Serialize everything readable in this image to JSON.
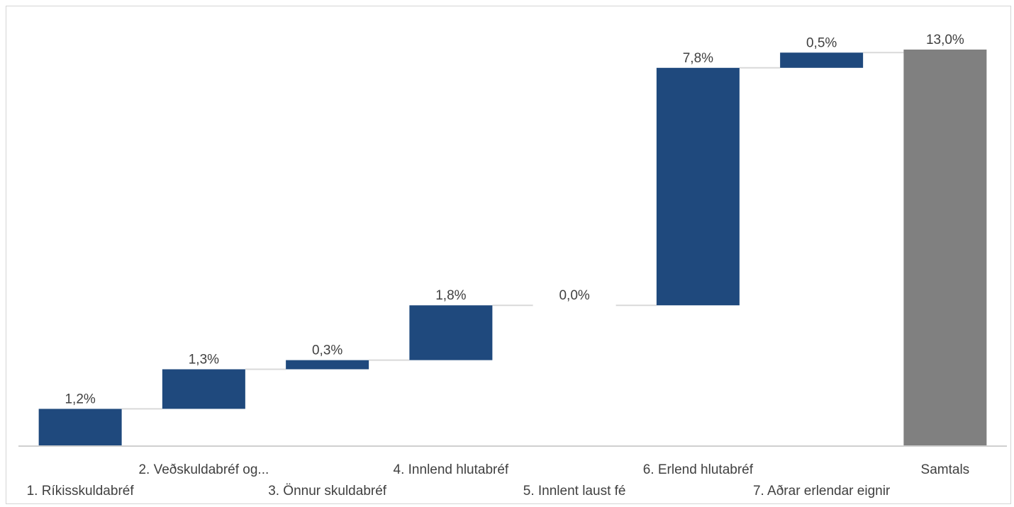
{
  "chart_data": {
    "type": "bar",
    "subtype": "waterfall",
    "title": "",
    "xlabel": "",
    "ylabel": "",
    "ylim": [
      0,
      13.5
    ],
    "grid": false,
    "legend": "none",
    "categories": [
      "1. Ríkisskuldabréf",
      "2. Veðskuldabréf og...",
      "3. Önnur skuldabréf",
      "4. Innlend hlutabréf",
      "5. Innlent laust fé",
      "6. Erlend hlutabréf",
      "7. Aðrar erlendar eignir",
      "Samtals"
    ],
    "values": [
      1.2,
      1.3,
      0.3,
      1.8,
      0.0,
      7.8,
      0.5,
      13.0
    ],
    "value_labels": [
      "1,2%",
      "1,3%",
      "0,3%",
      "1,8%",
      "0,0%",
      "7,8%",
      "0,5%",
      "13,0%"
    ],
    "is_total": [
      false,
      false,
      false,
      false,
      false,
      false,
      false,
      true
    ],
    "colors": {
      "increase": "#1f497d",
      "total": "#808080",
      "connector": "#d9d9d9",
      "axis": "#d0d0d0",
      "text": "#404040"
    }
  }
}
